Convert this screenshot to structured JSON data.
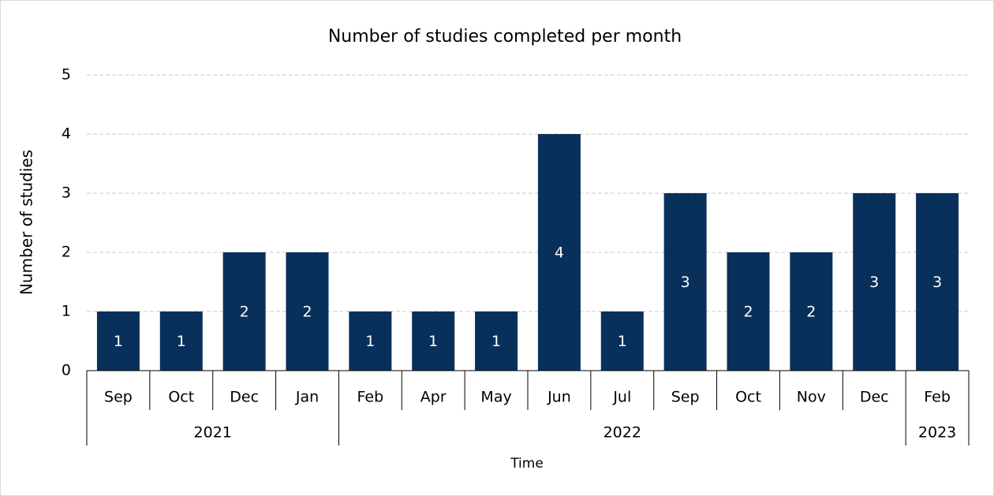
{
  "chart_data": {
    "type": "bar",
    "title": "Number of studies completed per month",
    "ylabel": "Number of studies",
    "xlabel": "Time",
    "groups": [
      {
        "label": "2021",
        "categories": [
          "Sep",
          "Oct",
          "Dec",
          "Jan"
        ]
      },
      {
        "label": "2022",
        "categories": [
          "Feb",
          "Apr",
          "May",
          "Jun",
          "Jul",
          "Sep",
          "Oct",
          "Nov",
          "Dec"
        ]
      },
      {
        "label": "2023",
        "categories": [
          "Feb"
        ]
      }
    ],
    "values": [
      1,
      1,
      2,
      2,
      1,
      1,
      1,
      4,
      1,
      3,
      2,
      2,
      3,
      3
    ],
    "color": "#08305b",
    "ylim": [
      0,
      5
    ],
    "yticks": [
      0,
      1,
      2,
      3,
      4,
      5
    ],
    "grid": true
  }
}
